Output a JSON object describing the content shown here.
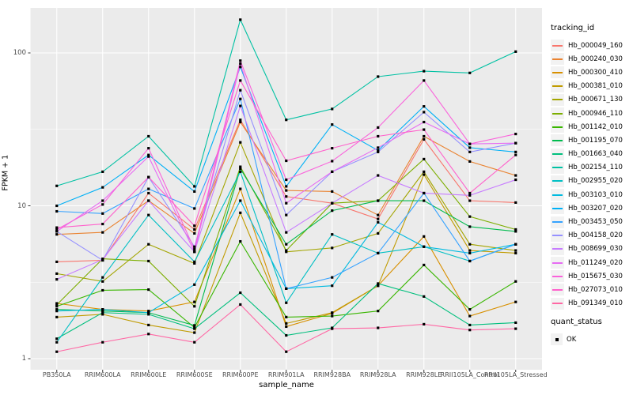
{
  "figure": {
    "y_axis_title": "FPKM + 1",
    "x_axis_title": "sample_name",
    "legend_title": "tracking_id",
    "legend2_title": "quant_status",
    "legend2_items": [
      {
        "label": "OK",
        "marker": "black-square"
      }
    ]
  },
  "style": {
    "panel_bg": "#EBEBEB",
    "grid_color": "#FFFFFF",
    "tick_color": "#333333",
    "axis_text_color": "#4D4D4D",
    "point_color": "#000000",
    "legend_key_bg": "#F2F2F2"
  },
  "chart_data": {
    "type": "line",
    "title": "",
    "xlabel": "sample_name",
    "ylabel": "FPKM + 1",
    "y_scale": "log10",
    "ylim": [
      1,
      197
    ],
    "y_ticks": [
      1,
      10,
      100
    ],
    "y_minor_ticks": [
      3.162,
      31.62
    ],
    "grid": true,
    "legend_position": "right",
    "legend_title": "tracking_id",
    "point_marker": "filled-square-black",
    "point_marker_meaning": "quant_status = OK",
    "categories": [
      "PB350LA",
      "RRIM600LA",
      "RRIM600LE",
      "RRIM600SE",
      "RRIM600PE",
      "RRIM901LA",
      "RRIM928BA",
      "RRIM928LA",
      "RRIM928LE",
      "RRII105LA_Control",
      "RRII105LA_Stressed"
    ],
    "series": [
      {
        "name": "Hb_000049_160",
        "color": "#F8766D",
        "values": [
          4.3,
          4.4,
          12.1,
          7.0,
          36.5,
          11.5,
          10.4,
          8.2,
          27.2,
          10.8,
          10.5
        ]
      },
      {
        "name": "Hb_000240_030",
        "color": "#EA8331",
        "values": [
          6.5,
          6.7,
          10.8,
          6.6,
          35.3,
          12.6,
          12.4,
          8.7,
          28.5,
          19.5,
          15.8
        ]
      },
      {
        "name": "Hb_000300_410",
        "color": "#D89000",
        "values": [
          2.3,
          2.1,
          2.05,
          2.35,
          12.9,
          1.62,
          1.98,
          3.0,
          6.3,
          1.9,
          2.35
        ]
      },
      {
        "name": "Hb_000381_010",
        "color": "#C09B00",
        "values": [
          1.87,
          1.95,
          1.66,
          1.48,
          9.0,
          1.7,
          2.0,
          3.0,
          16.0,
          5.1,
          4.9
        ]
      },
      {
        "name": "Hb_000671_130",
        "color": "#A3A500",
        "values": [
          3.6,
          3.2,
          5.6,
          4.2,
          26.0,
          5.0,
          5.3,
          6.6,
          16.7,
          5.6,
          5.1
        ]
      },
      {
        "name": "Hb_000946_110",
        "color": "#7CAE00",
        "values": [
          2.25,
          4.5,
          4.35,
          2.2,
          18.0,
          5.1,
          10.4,
          10.8,
          20.2,
          8.5,
          7.0
        ]
      },
      {
        "name": "Hb_001142_010",
        "color": "#39B600",
        "values": [
          2.2,
          2.8,
          2.83,
          1.6,
          5.85,
          1.87,
          1.9,
          2.05,
          4.1,
          2.1,
          3.2
        ]
      },
      {
        "name": "Hb_001195_070",
        "color": "#00BB4E",
        "values": [
          2.1,
          2.05,
          2.0,
          1.65,
          17.5,
          5.6,
          9.3,
          10.8,
          10.8,
          7.3,
          6.8
        ]
      },
      {
        "name": "Hb_001663_040",
        "color": "#00BF7D",
        "values": [
          1.35,
          2.0,
          1.95,
          1.57,
          2.7,
          1.42,
          1.59,
          3.1,
          2.55,
          1.66,
          1.72
        ]
      },
      {
        "name": "Hb_002154_110",
        "color": "#00C1A3",
        "values": [
          13.5,
          16.7,
          28.5,
          13.4,
          165.0,
          36.5,
          43.0,
          70.0,
          76.0,
          74.0,
          102.0
        ]
      },
      {
        "name": "Hb_002955_020",
        "color": "#00BFC4",
        "values": [
          1.28,
          3.4,
          8.7,
          4.3,
          16.7,
          2.32,
          6.5,
          4.9,
          5.4,
          4.35,
          5.6
        ]
      },
      {
        "name": "Hb_003103_010",
        "color": "#00BAE0",
        "values": [
          2.05,
          2.1,
          2.0,
          3.05,
          10.8,
          2.87,
          3.0,
          7.8,
          5.4,
          4.9,
          5.6
        ]
      },
      {
        "name": "Hb_003207_020",
        "color": "#00B0F6",
        "values": [
          10.0,
          13.2,
          21.5,
          12.4,
          81.0,
          13.4,
          34.0,
          23.0,
          44.7,
          24.0,
          22.5
        ]
      },
      {
        "name": "Hb_003453_050",
        "color": "#35A2FF",
        "values": [
          9.2,
          8.9,
          12.9,
          9.6,
          50.0,
          2.87,
          3.4,
          4.9,
          12.1,
          4.35,
          5.6
        ]
      },
      {
        "name": "Hb_004158_020",
        "color": "#9590FF",
        "values": [
          6.8,
          4.4,
          15.4,
          5.4,
          57.0,
          8.7,
          16.7,
          22.5,
          41.0,
          22.5,
          25.7
        ]
      },
      {
        "name": "Hb_008699_030",
        "color": "#C77CFF",
        "values": [
          3.3,
          4.45,
          10.8,
          5.0,
          45.0,
          6.7,
          10.4,
          15.8,
          12.1,
          11.7,
          14.8
        ]
      },
      {
        "name": "Hb_011249_020",
        "color": "#E76BF3",
        "values": [
          6.8,
          10.8,
          21.0,
          5.0,
          85.0,
          10.4,
          16.7,
          24.0,
          35.3,
          25.4,
          25.7
        ]
      },
      {
        "name": "Hb_015675_030",
        "color": "#FA62DB",
        "values": [
          7.0,
          10.2,
          23.8,
          5.2,
          89.0,
          14.8,
          19.6,
          32.5,
          66.0,
          25.4,
          29.5
        ]
      },
      {
        "name": "Hb_027073_010",
        "color": "#FF61CC",
        "values": [
          7.2,
          7.6,
          15.4,
          7.4,
          66.0,
          19.7,
          23.8,
          28.5,
          31.5,
          12.1,
          21.5
        ]
      },
      {
        "name": "Hb_091349_010",
        "color": "#FF67A4",
        "values": [
          1.11,
          1.28,
          1.45,
          1.28,
          2.26,
          1.11,
          1.57,
          1.59,
          1.68,
          1.54,
          1.57
        ]
      }
    ]
  }
}
